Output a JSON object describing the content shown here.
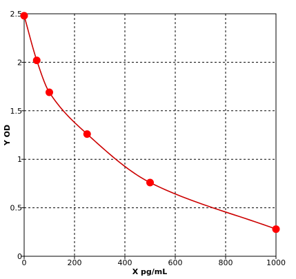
{
  "chart_data": {
    "type": "scatter",
    "title": "",
    "xlabel": "X pg/mL",
    "ylabel": "Y OD",
    "xlim": [
      0,
      1000
    ],
    "ylim": [
      0,
      2.5
    ],
    "x_ticks": [
      0,
      200,
      400,
      600,
      800,
      1000
    ],
    "y_ticks": [
      0,
      0.5,
      1,
      1.5,
      2,
      2.5
    ],
    "x_tick_labels": [
      "0",
      "200",
      "400",
      "600",
      "800",
      "1000"
    ],
    "y_tick_labels": [
      "0",
      "0.5",
      "1",
      "1.5",
      "2",
      "2.5"
    ],
    "grid": true,
    "legend": "none",
    "series": [
      {
        "x": [
          0,
          50,
          100,
          250,
          500,
          1000
        ],
        "y": [
          2.48,
          2.02,
          1.69,
          1.26,
          0.76,
          0.28
        ],
        "color": "#ff0000",
        "fit_line": true,
        "fit_color": "#cc0000"
      }
    ]
  }
}
